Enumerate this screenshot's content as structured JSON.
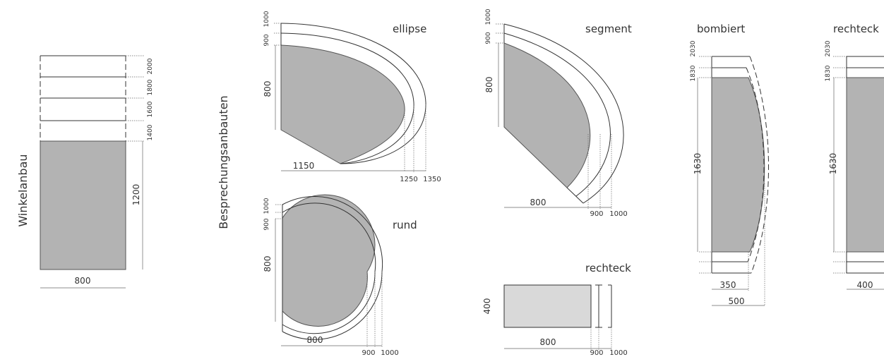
{
  "section_titles": {
    "winkelanbau": "Winkelanbau",
    "besprechungsanbauten": "Besprechungsanbauten"
  },
  "winkelanbau": {
    "width_label": "800",
    "depth_label": "1200",
    "extension_labels": [
      "1400",
      "1600",
      "1800",
      "2000"
    ]
  },
  "ellipse": {
    "title": "ellipse",
    "depth_labels": [
      "900",
      "1000"
    ],
    "height_label": "800",
    "width_label": "1150",
    "extent_labels": [
      "1250",
      "1350"
    ]
  },
  "rund": {
    "title": "rund",
    "depth_labels": [
      "900",
      "1000"
    ],
    "height_label": "800",
    "width_label": "800",
    "extent_labels": [
      "900",
      "1000"
    ]
  },
  "segment": {
    "title": "segment",
    "depth_labels": [
      "900",
      "1000"
    ],
    "height_label": "800",
    "width_label": "800",
    "extent_labels": [
      "900",
      "1000"
    ]
  },
  "rechteck_small": {
    "title": "rechteck",
    "height_label": "400",
    "width_label": "800",
    "extent_labels": [
      "900",
      "1000"
    ]
  },
  "bombiert": {
    "title": "bombiert",
    "top_labels": [
      "1830",
      "2030"
    ],
    "height_label": "1630",
    "width_labels": [
      "350",
      "500"
    ]
  },
  "rechteck_right": {
    "title": "rechteck",
    "top_labels": [
      "1830",
      "2030"
    ],
    "height_label": "1630",
    "width_label": "400"
  }
}
